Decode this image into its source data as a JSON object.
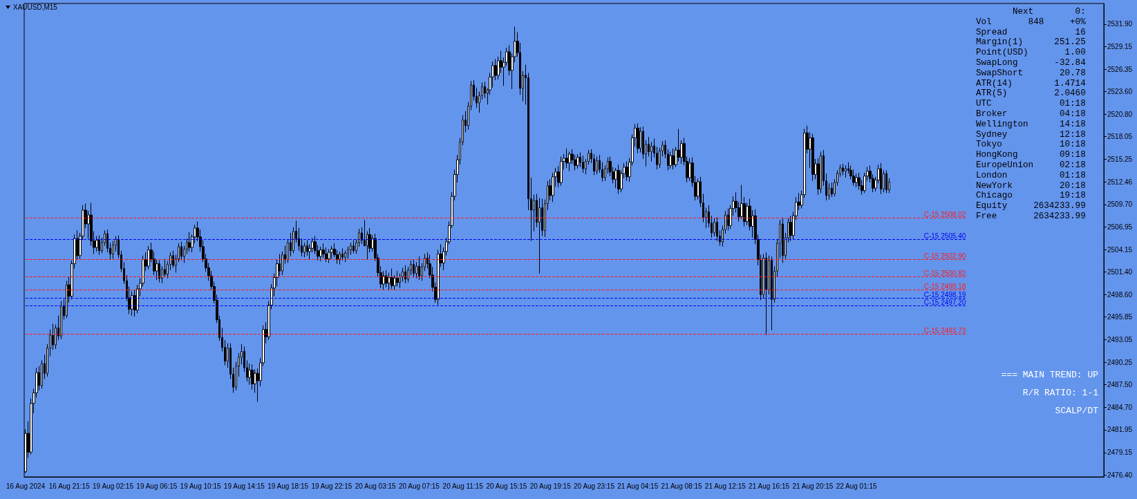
{
  "chart_data": {
    "type": "candlestick",
    "title": "XAUUSD,M15",
    "categories": [
      "16 Aug 2024",
      null,
      null,
      null,
      null,
      null,
      null,
      null,
      null,
      null,
      null,
      null,
      null,
      null,
      null,
      null,
      "16 Aug 21:15",
      null,
      null,
      null,
      null,
      null,
      null,
      null,
      null,
      null,
      null,
      null,
      null,
      null,
      null,
      null,
      "19 Aug 02:15",
      null,
      null,
      null,
      null,
      null,
      null,
      null,
      null,
      null,
      null,
      null,
      null,
      null,
      null,
      null,
      "19 Aug 06:15",
      null,
      null,
      null,
      null,
      null,
      null,
      null,
      null,
      null,
      null,
      null,
      null,
      null,
      null,
      null,
      "19 Aug 10:15",
      null,
      null,
      null,
      null,
      null,
      null,
      null,
      null,
      null,
      null,
      null,
      null,
      null,
      null,
      null,
      "19 Aug 14:15",
      null,
      null,
      null,
      null,
      null,
      null,
      null,
      null,
      null,
      null,
      null,
      null,
      null,
      null,
      null,
      "19 Aug 18:15",
      null,
      null,
      null,
      null,
      null,
      null,
      null,
      null,
      null,
      null,
      null,
      null,
      null,
      null,
      null,
      "19 Aug 22:15",
      null,
      null,
      null,
      null,
      null,
      null,
      null,
      null,
      null,
      null,
      null,
      null,
      null,
      null,
      null,
      "20 Aug 03:15",
      null,
      null,
      null,
      null,
      null,
      null,
      null,
      null,
      null,
      null,
      null,
      null,
      null,
      null,
      null,
      "20 Aug 07:15",
      null,
      null,
      null,
      null,
      null,
      null,
      null,
      null,
      null,
      null,
      null,
      null,
      null,
      null,
      null,
      "20 Aug 11:15",
      null,
      null,
      null,
      null,
      null,
      null,
      null,
      null,
      null,
      null,
      null,
      null,
      null,
      null,
      null,
      "20 Aug 15:15",
      null,
      null,
      null,
      null,
      null,
      null,
      null,
      null,
      null,
      null,
      null,
      null,
      null,
      null,
      null,
      "20 Aug 19:15",
      null,
      null,
      null,
      null,
      null,
      null,
      null,
      null,
      null,
      null,
      null,
      null,
      null,
      null,
      null,
      "20 Aug 23:15",
      null,
      null,
      null,
      null,
      null,
      null,
      null,
      null,
      null,
      null,
      null,
      null,
      null,
      null,
      null,
      "21 Aug 04:15",
      null,
      null,
      null,
      null,
      null,
      null,
      null,
      null,
      null,
      null,
      null,
      null,
      null,
      null,
      null,
      "21 Aug 08:15",
      null,
      null,
      null,
      null,
      null,
      null,
      null,
      null,
      null,
      null,
      null,
      null,
      null,
      null,
      null,
      "21 Aug 12:15",
      null,
      null,
      null,
      null,
      null,
      null,
      null,
      null,
      null,
      null,
      null,
      null,
      null,
      null,
      null,
      "21 Aug 16:15",
      null,
      null,
      null,
      null,
      null,
      null,
      null,
      null,
      null,
      null,
      null,
      null,
      null,
      null,
      null,
      "21 Aug 20:15",
      null,
      null,
      null,
      null,
      null,
      null,
      null,
      null,
      null,
      null,
      null,
      null,
      null,
      null,
      null,
      "22 Aug 01:15",
      null,
      null,
      null,
      null,
      null,
      null,
      null,
      null,
      null,
      null,
      null,
      null,
      null,
      null,
      null,
      null,
      null,
      null,
      null,
      null,
      null,
      null,
      null,
      null,
      null,
      null,
      null,
      null,
      null,
      null,
      null,
      null,
      null,
      null,
      null,
      null,
      null,
      null,
      null,
      null,
      null,
      null,
      null,
      null,
      null,
      null,
      null,
      null,
      null,
      null,
      null,
      null,
      null,
      null,
      null,
      null,
      null,
      null,
      null,
      null,
      null,
      null,
      null,
      null,
      null,
      null,
      null,
      null,
      null,
      null,
      null,
      null,
      null,
      null,
      null,
      null,
      null,
      null,
      null,
      null,
      null,
      null,
      null,
      null,
      null,
      null,
      null,
      null,
      null,
      null
    ],
    "ohlc": [
      [
        2476.8,
        2482.0,
        2476.6,
        2481.5
      ],
      [
        2481.5,
        2483.0,
        2478.5,
        2479.2
      ],
      [
        2479.2,
        2485.8,
        2478.9,
        2485.2
      ],
      [
        2485.2,
        2487.0,
        2484.0,
        2486.5
      ],
      [
        2486.5,
        2489.6,
        2485.9,
        2489.0
      ],
      [
        2489.0,
        2489.8,
        2486.8,
        2487.4
      ],
      [
        2487.4,
        2490.5,
        2487.0,
        2490.1
      ],
      [
        2490.1,
        2491.2,
        2488.2,
        2488.9
      ],
      [
        2488.9,
        2492.5,
        2488.5,
        2492.0
      ],
      [
        2492.0,
        2494.3,
        2491.0,
        2493.6
      ],
      [
        2493.6,
        2495.0,
        2491.8,
        2492.4
      ],
      [
        2492.4,
        2494.9,
        2491.9,
        2494.5
      ],
      [
        2494.5,
        2496.0,
        2493.0,
        2493.5
      ],
      [
        2493.5,
        2497.8,
        2493.1,
        2497.2
      ],
      [
        2497.2,
        2498.0,
        2495.5,
        2496.0
      ],
      [
        2496.0,
        2500.3,
        2495.7,
        2499.8
      ],
      [
        2499.8,
        2500.8,
        2497.6,
        2498.4
      ],
      [
        2498.4,
        2502.8,
        2498.0,
        2502.4
      ],
      [
        2502.4,
        2506.0,
        2501.8,
        2505.5
      ],
      [
        2505.5,
        2506.5,
        2502.9,
        2503.4
      ],
      [
        2503.4,
        2506.2,
        2503.0,
        2505.8
      ],
      [
        2505.8,
        2509.6,
        2505.3,
        2509.0
      ],
      [
        2509.0,
        2509.8,
        2506.8,
        2507.3
      ],
      [
        2507.3,
        2508.9,
        2505.5,
        2508.4
      ],
      [
        2508.4,
        2509.9,
        2504.6,
        2505.2
      ],
      [
        2505.2,
        2506.4,
        2503.6,
        2504.4
      ],
      [
        2504.4,
        2505.8,
        2503.9,
        2505.3
      ],
      [
        2505.3,
        2505.9,
        2503.5,
        2504.0
      ],
      [
        2504.0,
        2505.6,
        2503.7,
        2505.0
      ],
      [
        2505.0,
        2506.5,
        2504.6,
        2506.1
      ],
      [
        2506.1,
        2506.6,
        2503.8,
        2504.3
      ],
      [
        2504.3,
        2505.0,
        2502.9,
        2503.6
      ],
      [
        2503.6,
        2505.2,
        2503.0,
        2504.7
      ],
      [
        2504.7,
        2505.8,
        2503.9,
        2505.4
      ],
      [
        2505.4,
        2505.9,
        2503.1,
        2503.5
      ],
      [
        2503.5,
        2504.0,
        2501.4,
        2501.8
      ],
      [
        2501.8,
        2502.6,
        2499.9,
        2500.3
      ],
      [
        2500.3,
        2501.0,
        2497.8,
        2498.2
      ],
      [
        2498.2,
        2499.6,
        2496.2,
        2496.8
      ],
      [
        2496.8,
        2499.0,
        2496.0,
        2498.5
      ],
      [
        2498.5,
        2499.2,
        2495.9,
        2496.7
      ],
      [
        2496.7,
        2499.8,
        2496.3,
        2499.3
      ],
      [
        2499.3,
        2500.6,
        2498.4,
        2500.0
      ],
      [
        2500.0,
        2503.4,
        2499.6,
        2502.9
      ],
      [
        2502.9,
        2503.8,
        2501.5,
        2502.1
      ],
      [
        2502.1,
        2504.6,
        2501.7,
        2504.1
      ],
      [
        2504.1,
        2505.0,
        2502.6,
        2503.0
      ],
      [
        2503.0,
        2503.9,
        2501.0,
        2501.5
      ],
      [
        2501.5,
        2502.9,
        2500.4,
        2502.4
      ],
      [
        2502.4,
        2502.8,
        2500.1,
        2500.6
      ],
      [
        2500.6,
        2502.1,
        2500.0,
        2501.7
      ],
      [
        2501.7,
        2503.0,
        2500.8,
        2501.1
      ],
      [
        2501.1,
        2502.7,
        2500.6,
        2502.3
      ],
      [
        2502.3,
        2503.8,
        2501.6,
        2503.4
      ],
      [
        2503.4,
        2504.0,
        2501.9,
        2502.2
      ],
      [
        2502.2,
        2503.5,
        2501.3,
        2503.0
      ],
      [
        2503.0,
        2504.9,
        2502.6,
        2504.5
      ],
      [
        2504.5,
        2505.1,
        2502.8,
        2503.3
      ],
      [
        2503.3,
        2504.6,
        2502.5,
        2504.2
      ],
      [
        2504.2,
        2505.5,
        2503.6,
        2505.0
      ],
      [
        2505.0,
        2506.3,
        2503.9,
        2504.4
      ],
      [
        2504.4,
        2506.0,
        2503.8,
        2505.7
      ],
      [
        2505.7,
        2507.2,
        2504.9,
        2506.8
      ],
      [
        2506.8,
        2507.6,
        2505.2,
        2505.7
      ],
      [
        2505.7,
        2506.6,
        2503.9,
        2504.5
      ],
      [
        2504.5,
        2505.3,
        2502.6,
        2503.0
      ],
      [
        2503.0,
        2503.6,
        2501.4,
        2501.9
      ],
      [
        2501.9,
        2502.5,
        2500.3,
        2500.9
      ],
      [
        2500.9,
        2501.5,
        2499.2,
        2499.6
      ],
      [
        2499.6,
        2500.2,
        2497.5,
        2497.9
      ],
      [
        2497.9,
        2498.6,
        2495.1,
        2495.5
      ],
      [
        2495.5,
        2496.0,
        2492.9,
        2493.3
      ],
      [
        2493.3,
        2494.5,
        2491.6,
        2492.1
      ],
      [
        2492.1,
        2493.0,
        2489.9,
        2490.4
      ],
      [
        2490.4,
        2492.6,
        2489.6,
        2492.0
      ],
      [
        2492.0,
        2492.6,
        2488.2,
        2488.8
      ],
      [
        2488.8,
        2489.6,
        2486.5,
        2487.2
      ],
      [
        2487.2,
        2490.3,
        2486.8,
        2489.8
      ],
      [
        2489.8,
        2491.4,
        2488.5,
        2490.9
      ],
      [
        2490.9,
        2492.5,
        2490.0,
        2491.6
      ],
      [
        2491.6,
        2492.2,
        2489.1,
        2489.6
      ],
      [
        2489.6,
        2490.5,
        2487.9,
        2488.4
      ],
      [
        2488.4,
        2490.1,
        2487.5,
        2489.3
      ],
      [
        2489.3,
        2490.0,
        2486.9,
        2487.6
      ],
      [
        2487.6,
        2489.4,
        2486.5,
        2488.9
      ],
      [
        2488.9,
        2489.5,
        2485.4,
        2488.0
      ],
      [
        2488.0,
        2490.8,
        2487.3,
        2490.2
      ],
      [
        2490.2,
        2494.8,
        2489.8,
        2494.3
      ],
      [
        2494.3,
        2495.2,
        2492.6,
        2493.4
      ],
      [
        2493.4,
        2497.8,
        2493.0,
        2497.3
      ],
      [
        2497.3,
        2499.9,
        2496.8,
        2499.4
      ],
      [
        2499.4,
        2501.2,
        2498.4,
        2500.7
      ],
      [
        2500.7,
        2502.9,
        2499.6,
        2502.4
      ],
      [
        2502.4,
        2503.6,
        2500.9,
        2501.5
      ],
      [
        2501.5,
        2503.9,
        2501.0,
        2503.5
      ],
      [
        2503.5,
        2504.6,
        2502.4,
        2502.9
      ],
      [
        2502.9,
        2505.4,
        2502.5,
        2505.0
      ],
      [
        2505.0,
        2506.2,
        2503.3,
        2504.0
      ],
      [
        2504.0,
        2506.9,
        2503.7,
        2506.4
      ],
      [
        2506.4,
        2507.7,
        2505.0,
        2505.5
      ],
      [
        2505.5,
        2506.8,
        2504.0,
        2504.6
      ],
      [
        2504.6,
        2505.5,
        2503.3,
        2503.8
      ],
      [
        2503.8,
        2505.0,
        2503.2,
        2504.6
      ],
      [
        2504.6,
        2505.3,
        2503.4,
        2503.9
      ],
      [
        2503.9,
        2504.8,
        2502.9,
        2504.3
      ],
      [
        2504.3,
        2505.6,
        2503.8,
        2505.1
      ],
      [
        2505.1,
        2505.8,
        2503.6,
        2504.0
      ],
      [
        2504.0,
        2504.7,
        2502.8,
        2503.3
      ],
      [
        2503.3,
        2504.5,
        2502.7,
        2504.1
      ],
      [
        2504.1,
        2504.9,
        2503.1,
        2503.6
      ],
      [
        2503.6,
        2504.4,
        2502.6,
        2503.0
      ],
      [
        2503.0,
        2504.2,
        2502.5,
        2503.8
      ],
      [
        2503.8,
        2504.6,
        2503.0,
        2504.2
      ],
      [
        2504.2,
        2504.9,
        2503.2,
        2503.5
      ],
      [
        2503.5,
        2504.1,
        2502.4,
        2502.9
      ],
      [
        2502.9,
        2503.9,
        2502.3,
        2503.6
      ],
      [
        2503.6,
        2504.3,
        2502.8,
        2503.2
      ],
      [
        2503.2,
        2504.0,
        2502.6,
        2503.7
      ],
      [
        2503.7,
        2504.5,
        2503.0,
        2504.1
      ],
      [
        2504.1,
        2505.0,
        2503.5,
        2504.6
      ],
      [
        2504.6,
        2505.3,
        2503.7,
        2504.0
      ],
      [
        2504.0,
        2505.4,
        2503.6,
        2505.0
      ],
      [
        2505.0,
        2506.7,
        2504.5,
        2506.2
      ],
      [
        2506.2,
        2506.9,
        2504.8,
        2505.3
      ],
      [
        2505.3,
        2507.8,
        2504.6,
        2504.6
      ],
      [
        2504.6,
        2506.4,
        2502.9,
        2506.0
      ],
      [
        2506.0,
        2506.8,
        2503.8,
        2504.3
      ],
      [
        2504.3,
        2505.9,
        2503.9,
        2505.5
      ],
      [
        2505.5,
        2506.1,
        2502.7,
        2503.1
      ],
      [
        2503.1,
        2503.6,
        2500.8,
        2501.3
      ],
      [
        2501.3,
        2502.1,
        2499.4,
        2499.9
      ],
      [
        2499.9,
        2501.5,
        2499.2,
        2500.9
      ],
      [
        2500.9,
        2501.6,
        2499.5,
        2500.0
      ],
      [
        2500.0,
        2501.3,
        2499.1,
        2500.7
      ],
      [
        2500.7,
        2501.8,
        2499.3,
        2499.7
      ],
      [
        2499.7,
        2501.0,
        2499.2,
        2500.6
      ],
      [
        2500.6,
        2501.5,
        2499.6,
        2500.1
      ],
      [
        2500.1,
        2501.2,
        2499.4,
        2500.8
      ],
      [
        2500.8,
        2501.9,
        2500.2,
        2501.4
      ],
      [
        2501.4,
        2502.2,
        2500.0,
        2500.5
      ],
      [
        2500.5,
        2502.0,
        2500.1,
        2501.6
      ],
      [
        2501.6,
        2502.8,
        2501.0,
        2502.3
      ],
      [
        2502.3,
        2502.9,
        2500.7,
        2501.2
      ],
      [
        2501.2,
        2502.6,
        2500.6,
        2502.1
      ],
      [
        2502.1,
        2503.3,
        2500.4,
        2500.9
      ],
      [
        2500.9,
        2502.5,
        2500.3,
        2502.0
      ],
      [
        2502.0,
        2503.6,
        2501.5,
        2503.1
      ],
      [
        2503.1,
        2503.8,
        2501.8,
        2502.4
      ],
      [
        2502.4,
        2503.5,
        2500.6,
        2501.0
      ],
      [
        2501.0,
        2502.0,
        2499.0,
        2499.5
      ],
      [
        2499.5,
        2500.1,
        2497.6,
        2498.0
      ],
      [
        2498.0,
        2504.1,
        2497.3,
        2503.6
      ],
      [
        2503.6,
        2504.8,
        2502.0,
        2502.5
      ],
      [
        2502.5,
        2504.4,
        2501.6,
        2503.9
      ],
      [
        2503.9,
        2505.6,
        2503.4,
        2505.1
      ],
      [
        2505.1,
        2507.6,
        2504.8,
        2507.1
      ],
      [
        2507.1,
        2511.2,
        2506.8,
        2510.7
      ],
      [
        2510.7,
        2514.0,
        2510.2,
        2513.4
      ],
      [
        2513.4,
        2515.8,
        2512.4,
        2515.2
      ],
      [
        2515.2,
        2517.9,
        2514.6,
        2517.4
      ],
      [
        2517.4,
        2520.7,
        2517.0,
        2520.1
      ],
      [
        2520.1,
        2521.2,
        2518.6,
        2519.4
      ],
      [
        2519.4,
        2522.3,
        2518.9,
        2521.8
      ],
      [
        2521.8,
        2524.9,
        2521.3,
        2524.4
      ],
      [
        2524.4,
        2525.0,
        2522.5,
        2523.0
      ],
      [
        2523.0,
        2524.1,
        2521.6,
        2522.2
      ],
      [
        2522.2,
        2523.6,
        2521.0,
        2523.1
      ],
      [
        2523.1,
        2524.7,
        2522.6,
        2524.2
      ],
      [
        2524.2,
        2524.8,
        2522.8,
        2523.4
      ],
      [
        2523.4,
        2524.0,
        2522.0,
        2523.8
      ],
      [
        2523.8,
        2525.9,
        2523.2,
        2525.4
      ],
      [
        2525.4,
        2527.3,
        2524.1,
        2526.8
      ],
      [
        2526.8,
        2527.6,
        2525.0,
        2525.6
      ],
      [
        2525.6,
        2527.9,
        2525.1,
        2527.4
      ],
      [
        2527.4,
        2528.6,
        2525.9,
        2526.6
      ],
      [
        2526.6,
        2527.8,
        2524.3,
        2527.2
      ],
      [
        2527.2,
        2529.0,
        2526.8,
        2528.5
      ],
      [
        2528.5,
        2529.3,
        2525.6,
        2526.2
      ],
      [
        2526.2,
        2528.3,
        2523.9,
        2527.9
      ],
      [
        2527.9,
        2531.6,
        2527.2,
        2529.8
      ],
      [
        2529.8,
        2530.9,
        2527.9,
        2528.4
      ],
      [
        2528.4,
        2529.6,
        2523.2,
        2524.0
      ],
      [
        2524.0,
        2526.1,
        2522.4,
        2525.6
      ],
      [
        2525.6,
        2526.9,
        2522.0,
        2525.3
      ],
      [
        2525.3,
        2525.9,
        2509.0,
        2510.4
      ],
      [
        2510.4,
        2513.0,
        2505.2,
        2509.0
      ],
      [
        2509.0,
        2510.9,
        2506.4,
        2510.2
      ],
      [
        2510.2,
        2511.0,
        2506.9,
        2507.5
      ],
      [
        2507.5,
        2510.5,
        2501.2,
        2509.3
      ],
      [
        2509.3,
        2510.4,
        2505.8,
        2506.5
      ],
      [
        2506.5,
        2510.3,
        2505.7,
        2509.8
      ],
      [
        2509.8,
        2512.6,
        2509.0,
        2512.0
      ],
      [
        2512.0,
        2512.8,
        2510.2,
        2510.8
      ],
      [
        2510.8,
        2513.6,
        2510.0,
        2513.1
      ],
      [
        2513.1,
        2514.2,
        2511.9,
        2513.7
      ],
      [
        2513.7,
        2514.4,
        2511.8,
        2512.4
      ],
      [
        2512.4,
        2515.6,
        2512.0,
        2515.0
      ],
      [
        2515.0,
        2515.9,
        2514.0,
        2515.4
      ],
      [
        2515.4,
        2516.6,
        2514.2,
        2514.8
      ],
      [
        2514.8,
        2516.2,
        2513.8,
        2515.9
      ],
      [
        2515.9,
        2516.5,
        2514.7,
        2515.2
      ],
      [
        2515.2,
        2515.8,
        2513.9,
        2514.5
      ],
      [
        2514.5,
        2515.9,
        2514.1,
        2515.5
      ],
      [
        2515.5,
        2516.1,
        2514.3,
        2514.9
      ],
      [
        2514.9,
        2515.7,
        2513.6,
        2514.1
      ],
      [
        2514.1,
        2515.3,
        2513.4,
        2515.0
      ],
      [
        2515.0,
        2516.4,
        2514.6,
        2516.0
      ],
      [
        2516.0,
        2516.5,
        2514.8,
        2515.3
      ],
      [
        2515.3,
        2515.9,
        2513.3,
        2513.8
      ],
      [
        2513.8,
        2515.6,
        2513.4,
        2515.1
      ],
      [
        2515.1,
        2515.8,
        2513.6,
        2514.0
      ],
      [
        2514.0,
        2514.9,
        2512.5,
        2513.0
      ],
      [
        2513.0,
        2514.5,
        2512.6,
        2514.1
      ],
      [
        2514.1,
        2515.5,
        2513.5,
        2515.0
      ],
      [
        2515.0,
        2515.6,
        2513.2,
        2513.7
      ],
      [
        2513.7,
        2514.3,
        2512.3,
        2512.8
      ],
      [
        2512.8,
        2514.2,
        2511.7,
        2513.9
      ],
      [
        2513.9,
        2514.6,
        2511.0,
        2511.6
      ],
      [
        2511.6,
        2513.9,
        2511.2,
        2513.5
      ],
      [
        2513.5,
        2514.8,
        2512.9,
        2514.3
      ],
      [
        2514.3,
        2515.0,
        2512.6,
        2513.1
      ],
      [
        2513.1,
        2515.4,
        2512.5,
        2514.9
      ],
      [
        2514.9,
        2518.3,
        2514.5,
        2517.9
      ],
      [
        2517.9,
        2519.6,
        2516.8,
        2519.1
      ],
      [
        2519.1,
        2519.7,
        2516.0,
        2516.6
      ],
      [
        2516.6,
        2519.2,
        2516.1,
        2518.7
      ],
      [
        2518.7,
        2519.3,
        2515.3,
        2515.9
      ],
      [
        2515.9,
        2517.6,
        2514.4,
        2517.1
      ],
      [
        2517.1,
        2518.0,
        2515.6,
        2516.2
      ],
      [
        2516.2,
        2517.4,
        2515.0,
        2516.9
      ],
      [
        2516.9,
        2517.8,
        2515.5,
        2516.0
      ],
      [
        2516.0,
        2516.8,
        2514.0,
        2514.6
      ],
      [
        2514.6,
        2516.7,
        2514.2,
        2516.3
      ],
      [
        2516.3,
        2517.5,
        2515.6,
        2517.0
      ],
      [
        2517.0,
        2517.6,
        2515.4,
        2515.9
      ],
      [
        2515.9,
        2516.5,
        2513.9,
        2514.5
      ],
      [
        2514.5,
        2516.2,
        2514.1,
        2515.7
      ],
      [
        2515.7,
        2516.6,
        2514.0,
        2514.6
      ],
      [
        2514.6,
        2516.8,
        2514.3,
        2516.4
      ],
      [
        2516.4,
        2519.0,
        2515.0,
        2515.5
      ],
      [
        2515.5,
        2517.6,
        2514.7,
        2517.2
      ],
      [
        2517.2,
        2517.9,
        2514.5,
        2515.0
      ],
      [
        2515.0,
        2515.6,
        2512.4,
        2513.0
      ],
      [
        2513.0,
        2515.4,
        2512.6,
        2514.8
      ],
      [
        2514.8,
        2515.5,
        2511.9,
        2512.4
      ],
      [
        2512.4,
        2513.2,
        2510.2,
        2510.7
      ],
      [
        2510.7,
        2512.9,
        2510.3,
        2512.5
      ],
      [
        2512.5,
        2513.1,
        2509.4,
        2509.9
      ],
      [
        2509.9,
        2511.0,
        2507.5,
        2508.1
      ],
      [
        2508.1,
        2509.3,
        2506.8,
        2508.8
      ],
      [
        2508.8,
        2509.6,
        2506.9,
        2507.4
      ],
      [
        2507.4,
        2508.3,
        2505.6,
        2506.2
      ],
      [
        2506.2,
        2508.0,
        2505.8,
        2507.5
      ],
      [
        2507.5,
        2508.1,
        2505.2,
        2505.8
      ],
      [
        2505.8,
        2506.5,
        2504.6,
        2505.1
      ],
      [
        2505.1,
        2507.1,
        2504.5,
        2506.6
      ],
      [
        2506.6,
        2508.9,
        2506.1,
        2508.4
      ],
      [
        2508.4,
        2509.2,
        2506.5,
        2507.1
      ],
      [
        2507.1,
        2509.6,
        2506.7,
        2509.2
      ],
      [
        2509.2,
        2510.7,
        2508.3,
        2510.1
      ],
      [
        2510.1,
        2511.2,
        2508.7,
        2509.3
      ],
      [
        2509.3,
        2510.0,
        2507.6,
        2508.2
      ],
      [
        2508.2,
        2512.1,
        2507.9,
        2509.8
      ],
      [
        2509.8,
        2510.6,
        2507.0,
        2507.6
      ],
      [
        2507.6,
        2509.9,
        2507.2,
        2509.5
      ],
      [
        2509.5,
        2510.4,
        2506.5,
        2507.0
      ],
      [
        2507.0,
        2509.0,
        2505.6,
        2508.3
      ],
      [
        2508.3,
        2509.1,
        2504.8,
        2505.4
      ],
      [
        2505.4,
        2506.0,
        2502.2,
        2502.9
      ],
      [
        2502.9,
        2503.5,
        2497.9,
        2498.6
      ],
      [
        2498.6,
        2503.6,
        2498.1,
        2503.1
      ],
      [
        2503.1,
        2503.8,
        2493.6,
        2499.2
      ],
      [
        2499.2,
        2503.4,
        2498.6,
        2502.8
      ],
      [
        2502.8,
        2503.3,
        2494.2,
        2498.0
      ],
      [
        2498.0,
        2502.1,
        2497.6,
        2501.5
      ],
      [
        2501.5,
        2505.4,
        2500.8,
        2504.9
      ],
      [
        2504.9,
        2507.8,
        2503.1,
        2507.3
      ],
      [
        2507.3,
        2508.1,
        2502.5,
        2503.4
      ],
      [
        2503.4,
        2506.2,
        2503.0,
        2505.6
      ],
      [
        2505.6,
        2508.0,
        2505.0,
        2507.5
      ],
      [
        2507.5,
        2508.3,
        2505.2,
        2505.9
      ],
      [
        2505.9,
        2508.8,
        2505.4,
        2508.3
      ],
      [
        2508.3,
        2510.6,
        2507.8,
        2510.0
      ],
      [
        2510.0,
        2511.1,
        2509.0,
        2509.6
      ],
      [
        2509.6,
        2511.4,
        2509.2,
        2510.9
      ],
      [
        2510.9,
        2519.0,
        2510.5,
        2518.5
      ],
      [
        2518.5,
        2519.4,
        2516.0,
        2516.5
      ],
      [
        2516.5,
        2518.6,
        2514.2,
        2517.9
      ],
      [
        2517.9,
        2518.4,
        2512.6,
        2513.4
      ],
      [
        2513.4,
        2515.3,
        2512.8,
        2514.7
      ],
      [
        2514.7,
        2515.4,
        2510.9,
        2511.6
      ],
      [
        2511.6,
        2516.2,
        2511.1,
        2515.7
      ],
      [
        2515.7,
        2516.4,
        2512.0,
        2512.6
      ],
      [
        2512.6,
        2513.5,
        2510.2,
        2510.8
      ],
      [
        2510.8,
        2512.3,
        2510.3,
        2511.7
      ],
      [
        2511.7,
        2512.4,
        2510.6,
        2511.0
      ],
      [
        2511.0,
        2512.8,
        2510.7,
        2512.4
      ],
      [
        2512.4,
        2513.9,
        2512.0,
        2513.5
      ],
      [
        2513.5,
        2514.6,
        2513.1,
        2514.2
      ],
      [
        2514.2,
        2514.7,
        2513.3,
        2513.8
      ],
      [
        2513.8,
        2514.5,
        2513.0,
        2514.1
      ],
      [
        2514.1,
        2514.9,
        2513.5,
        2513.9
      ],
      [
        2513.9,
        2514.5,
        2512.8,
        2513.2
      ],
      [
        2513.2,
        2514.0,
        2512.0,
        2512.4
      ],
      [
        2512.4,
        2513.5,
        2511.8,
        2513.0
      ],
      [
        2513.0,
        2513.6,
        2511.5,
        2512.0
      ],
      [
        2512.0,
        2512.7,
        2510.9,
        2511.4
      ],
      [
        2511.4,
        2513.6,
        2511.1,
        2513.2
      ],
      [
        2513.2,
        2514.3,
        2512.6,
        2513.8
      ],
      [
        2513.8,
        2514.5,
        2512.4,
        2512.9
      ],
      [
        2512.9,
        2513.4,
        2511.2,
        2511.7
      ],
      [
        2511.7,
        2513.1,
        2511.3,
        2512.7
      ],
      [
        2512.7,
        2514.6,
        2512.3,
        2514.1
      ],
      [
        2514.1,
        2514.8,
        2511.0,
        2511.6
      ],
      [
        2511.6,
        2513.9,
        2511.2,
        2513.5
      ],
      [
        2513.5,
        2513.9,
        2511.1,
        2511.5
      ],
      [
        2511.5,
        2512.9,
        2511.1,
        2512.46
      ],
      null,
      null,
      null,
      null,
      null,
      null,
      null,
      null,
      null,
      null,
      null,
      null,
      null,
      null,
      null,
      null,
      null,
      null,
      null,
      null,
      null,
      null,
      null,
      null,
      null,
      null,
      null,
      null,
      null,
      null,
      null,
      null,
      null,
      null,
      null,
      null,
      null,
      null,
      null,
      null,
      null,
      null,
      null,
      null,
      null,
      null,
      null,
      null,
      null,
      null,
      null,
      null,
      null,
      null,
      null,
      null,
      null,
      null,
      null,
      null,
      null,
      null,
      null,
      null,
      null,
      null,
      null,
      null,
      null,
      null,
      null,
      null,
      null,
      null,
      null,
      null,
      null,
      null
    ],
    "color": "#000000",
    "ylim": [
      2476.15,
      2534.45
    ],
    "yticks": [
      {
        "value": 2476.4,
        "label": "2476.40"
      },
      {
        "value": 2479.15,
        "label": "2479.15"
      },
      {
        "value": 2481.95,
        "label": "2481.95"
      },
      {
        "value": 2484.7,
        "label": "2484.70"
      },
      {
        "value": 2487.5,
        "label": "2487.50"
      },
      {
        "value": 2490.25,
        "label": "2490.25"
      },
      {
        "value": 2493.05,
        "label": "2493.05"
      },
      {
        "value": 2495.85,
        "label": "2495.85"
      },
      {
        "value": 2498.6,
        "label": "2498.60"
      },
      {
        "value": 2501.4,
        "label": "2501.40"
      },
      {
        "value": 2504.15,
        "label": "2504.15"
      },
      {
        "value": 2506.95,
        "label": "2506.95"
      },
      {
        "value": 2509.7,
        "label": "2509.70"
      },
      {
        "value": 2512.46,
        "label": "2512.46"
      },
      {
        "value": 2515.25,
        "label": "2515.25"
      },
      {
        "value": 2518.05,
        "label": "2518.05"
      },
      {
        "value": 2520.8,
        "label": "2520.80"
      },
      {
        "value": 2523.6,
        "label": "2523.60"
      },
      {
        "value": 2526.35,
        "label": "2526.35"
      },
      {
        "value": 2529.15,
        "label": "2529.15"
      },
      {
        "value": 2531.9,
        "label": "2531.90"
      }
    ],
    "ref_lines": [
      {
        "axis": "y",
        "value": 2508.02,
        "label": "C-15 2508.02",
        "color": "#ff1a1a",
        "line_style": "dashed"
      },
      {
        "axis": "y",
        "value": 2505.4,
        "label": "C-15 2505.40",
        "color": "#0000ee",
        "line_style": "dashed"
      },
      {
        "axis": "y",
        "value": 2502.9,
        "label": "C-15 2502.90",
        "color": "#ff1a1a",
        "line_style": "dashed"
      },
      {
        "axis": "y",
        "value": 2500.82,
        "label": "C-15 2500.82",
        "color": "#ff1a1a",
        "line_style": "dashed"
      },
      {
        "axis": "y",
        "value": 2499.18,
        "label": "C-15 2499.18",
        "color": "#ff1a1a",
        "line_style": "dashed"
      },
      {
        "axis": "y",
        "value": 2498.19,
        "label": "C-15 2498.19",
        "color": "#0000ee",
        "line_style": "dashed"
      },
      {
        "axis": "y",
        "value": 2497.2,
        "label": "C-15 2497.20",
        "color": "#0000ee",
        "line_style": "dashed"
      },
      {
        "axis": "y",
        "value": 2493.73,
        "label": "C-15 2493.73",
        "color": "#ff1a1a",
        "line_style": "dashed"
      }
    ],
    "annotations": [
      "       Next        0:",
      "Vol       848     +0%",
      "Spread             16",
      "Margin(1)      251.25",
      "Point(USD)       1.00",
      "SwapLong       -32.84",
      "SwapShort       20.78",
      "ATR(14)        1.4714",
      "ATR(5)         2.0460",
      "UTC             01:18",
      "Broker          04:18",
      "Wellington      14:18",
      "Sydney          12:18",
      "Tokyo           10:18",
      "HongKong        09:18",
      "EuropeUnion     02:18",
      "London          01:18",
      "NewYork         20:18",
      "Chicago         19:18",
      "Equity     2634233.99",
      "Free       2634233.99",
      "=== MAIN TREND: UP",
      "R/R RATIO: 1-1",
      "SCALP/DT"
    ],
    "grid": false
  }
}
